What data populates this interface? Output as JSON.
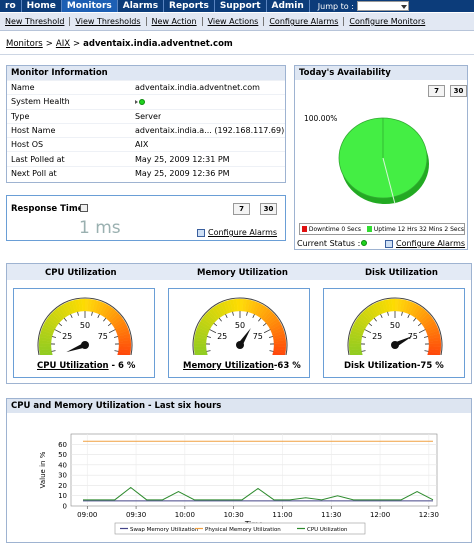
{
  "topnav": {
    "items": [
      "ro",
      "Home",
      "Monitors",
      "Alarms",
      "Reports",
      "Support",
      "Admin"
    ],
    "active": "Monitors",
    "jump_label": "Jump to :"
  },
  "subnav": {
    "items": [
      "New Threshold",
      "View Thresholds",
      "New Action",
      "View Actions",
      "Configure Alarms",
      "Configure Monitors"
    ]
  },
  "breadcrumb": {
    "items": [
      "Monitors",
      "AIX"
    ],
    "current": "adventaix.india.adventnet.com"
  },
  "monitor_info": {
    "title": "Monitor Information",
    "rows": [
      {
        "label": "Name",
        "value": "adventaix.india.adventnet.com"
      },
      {
        "label": "System Health",
        "value": ""
      },
      {
        "label": "Type",
        "value": "Server"
      },
      {
        "label": "Host Name",
        "value": "adventaix.india.a... (192.168.117.69)"
      },
      {
        "label": "Host OS",
        "value": "AIX"
      },
      {
        "label": "Last Polled at",
        "value": "May 25, 2009 12:31 PM"
      },
      {
        "label": "Next Poll at",
        "value": "May 25, 2009 12:36 PM"
      }
    ],
    "health_color": "#1fd21f"
  },
  "response_time": {
    "label": "Response Time",
    "value": "1 ms",
    "btn_7": "7",
    "btn_30": "30",
    "configure_alarms": "Configure Alarms"
  },
  "availability": {
    "title": "Today's Availability",
    "btn_7": "7",
    "btn_30": "30",
    "percent_label": "100.00%",
    "legend": [
      {
        "label": "Downtime 0 Secs",
        "color": "#e01010"
      },
      {
        "label": "Uptime 12 Hrs 32 Mins 2 Secs",
        "color": "#33dd33"
      }
    ],
    "uptime_fraction": 1.0,
    "current_status_label": "Current Status :",
    "configure_alarms": "Configure Alarms"
  },
  "utilization": {
    "cpu": {
      "header": "CPU Utilization",
      "caption_link": "CPU Utilization",
      "caption_rest": " - 6 %",
      "value": 6
    },
    "memory": {
      "header": "Memory Utilization",
      "caption_link": "Memory Utilization",
      "caption_rest": "-63 %",
      "value": 63
    },
    "disk": {
      "header": "Disk Utilization",
      "caption_link": "",
      "caption_rest": "Disk Utilization-75 %",
      "value": 75
    },
    "ticks": [
      "25",
      "50",
      "75"
    ]
  },
  "cpu_mem_chart": {
    "title": "CPU and Memory Utilization - Last six hours"
  },
  "chart_data": {
    "type": "line",
    "title": "",
    "xlabel": "Time",
    "ylabel": "Value in %",
    "ylim": [
      0,
      70
    ],
    "yticks": [
      "0",
      "10",
      "20",
      "30",
      "40",
      "50",
      "60"
    ],
    "xticks": [
      "09:00",
      "09:30",
      "10:00",
      "10:30",
      "11:00",
      "11:30",
      "12:00",
      "12:30"
    ],
    "x_range": [
      "08:50",
      "12:35"
    ],
    "series": [
      {
        "name": "Swap Memory Utilization",
        "color": "#444488",
        "values": [
          [
            0,
            5
          ],
          [
            1,
            5
          ],
          [
            2,
            5
          ],
          [
            3,
            5
          ],
          [
            4,
            5
          ],
          [
            5,
            5
          ],
          [
            6,
            5
          ],
          [
            7,
            5
          ],
          [
            8,
            5
          ],
          [
            9,
            5
          ],
          [
            10,
            5
          ],
          [
            11,
            5
          ],
          [
            12,
            5
          ],
          [
            13,
            5
          ],
          [
            14,
            5
          ],
          [
            15,
            5
          ],
          [
            16,
            5
          ],
          [
            17,
            5
          ],
          [
            18,
            5
          ],
          [
            19,
            5
          ],
          [
            20,
            5
          ],
          [
            21,
            5
          ],
          [
            22,
            5
          ]
        ]
      },
      {
        "name": "Physical Memory Utilization",
        "color": "#f0a040",
        "values": [
          [
            0,
            63
          ],
          [
            1,
            63
          ],
          [
            2,
            63
          ],
          [
            3,
            63
          ],
          [
            4,
            63
          ],
          [
            5,
            63
          ],
          [
            6,
            63
          ],
          [
            7,
            63
          ],
          [
            8,
            63
          ],
          [
            9,
            63
          ],
          [
            10,
            63
          ],
          [
            11,
            63
          ],
          [
            12,
            63
          ],
          [
            13,
            63
          ],
          [
            14,
            63
          ],
          [
            15,
            63
          ],
          [
            16,
            63
          ],
          [
            17,
            63
          ],
          [
            18,
            63
          ],
          [
            19,
            63
          ],
          [
            20,
            63
          ],
          [
            21,
            63
          ],
          [
            22,
            63
          ]
        ]
      },
      {
        "name": "CPU Utilization",
        "color": "#2e8b2e",
        "values": [
          [
            0,
            6
          ],
          [
            1,
            6
          ],
          [
            2,
            6
          ],
          [
            3,
            18
          ],
          [
            4,
            6
          ],
          [
            5,
            6
          ],
          [
            6,
            14
          ],
          [
            7,
            6
          ],
          [
            8,
            6
          ],
          [
            9,
            6
          ],
          [
            10,
            6
          ],
          [
            11,
            17
          ],
          [
            12,
            6
          ],
          [
            13,
            6
          ],
          [
            14,
            8
          ],
          [
            15,
            6
          ],
          [
            16,
            10
          ],
          [
            17,
            6
          ],
          [
            18,
            6
          ],
          [
            19,
            6
          ],
          [
            20,
            6
          ],
          [
            21,
            14
          ],
          [
            22,
            6
          ]
        ]
      }
    ],
    "legend_position": "bottom",
    "grid": true
  }
}
